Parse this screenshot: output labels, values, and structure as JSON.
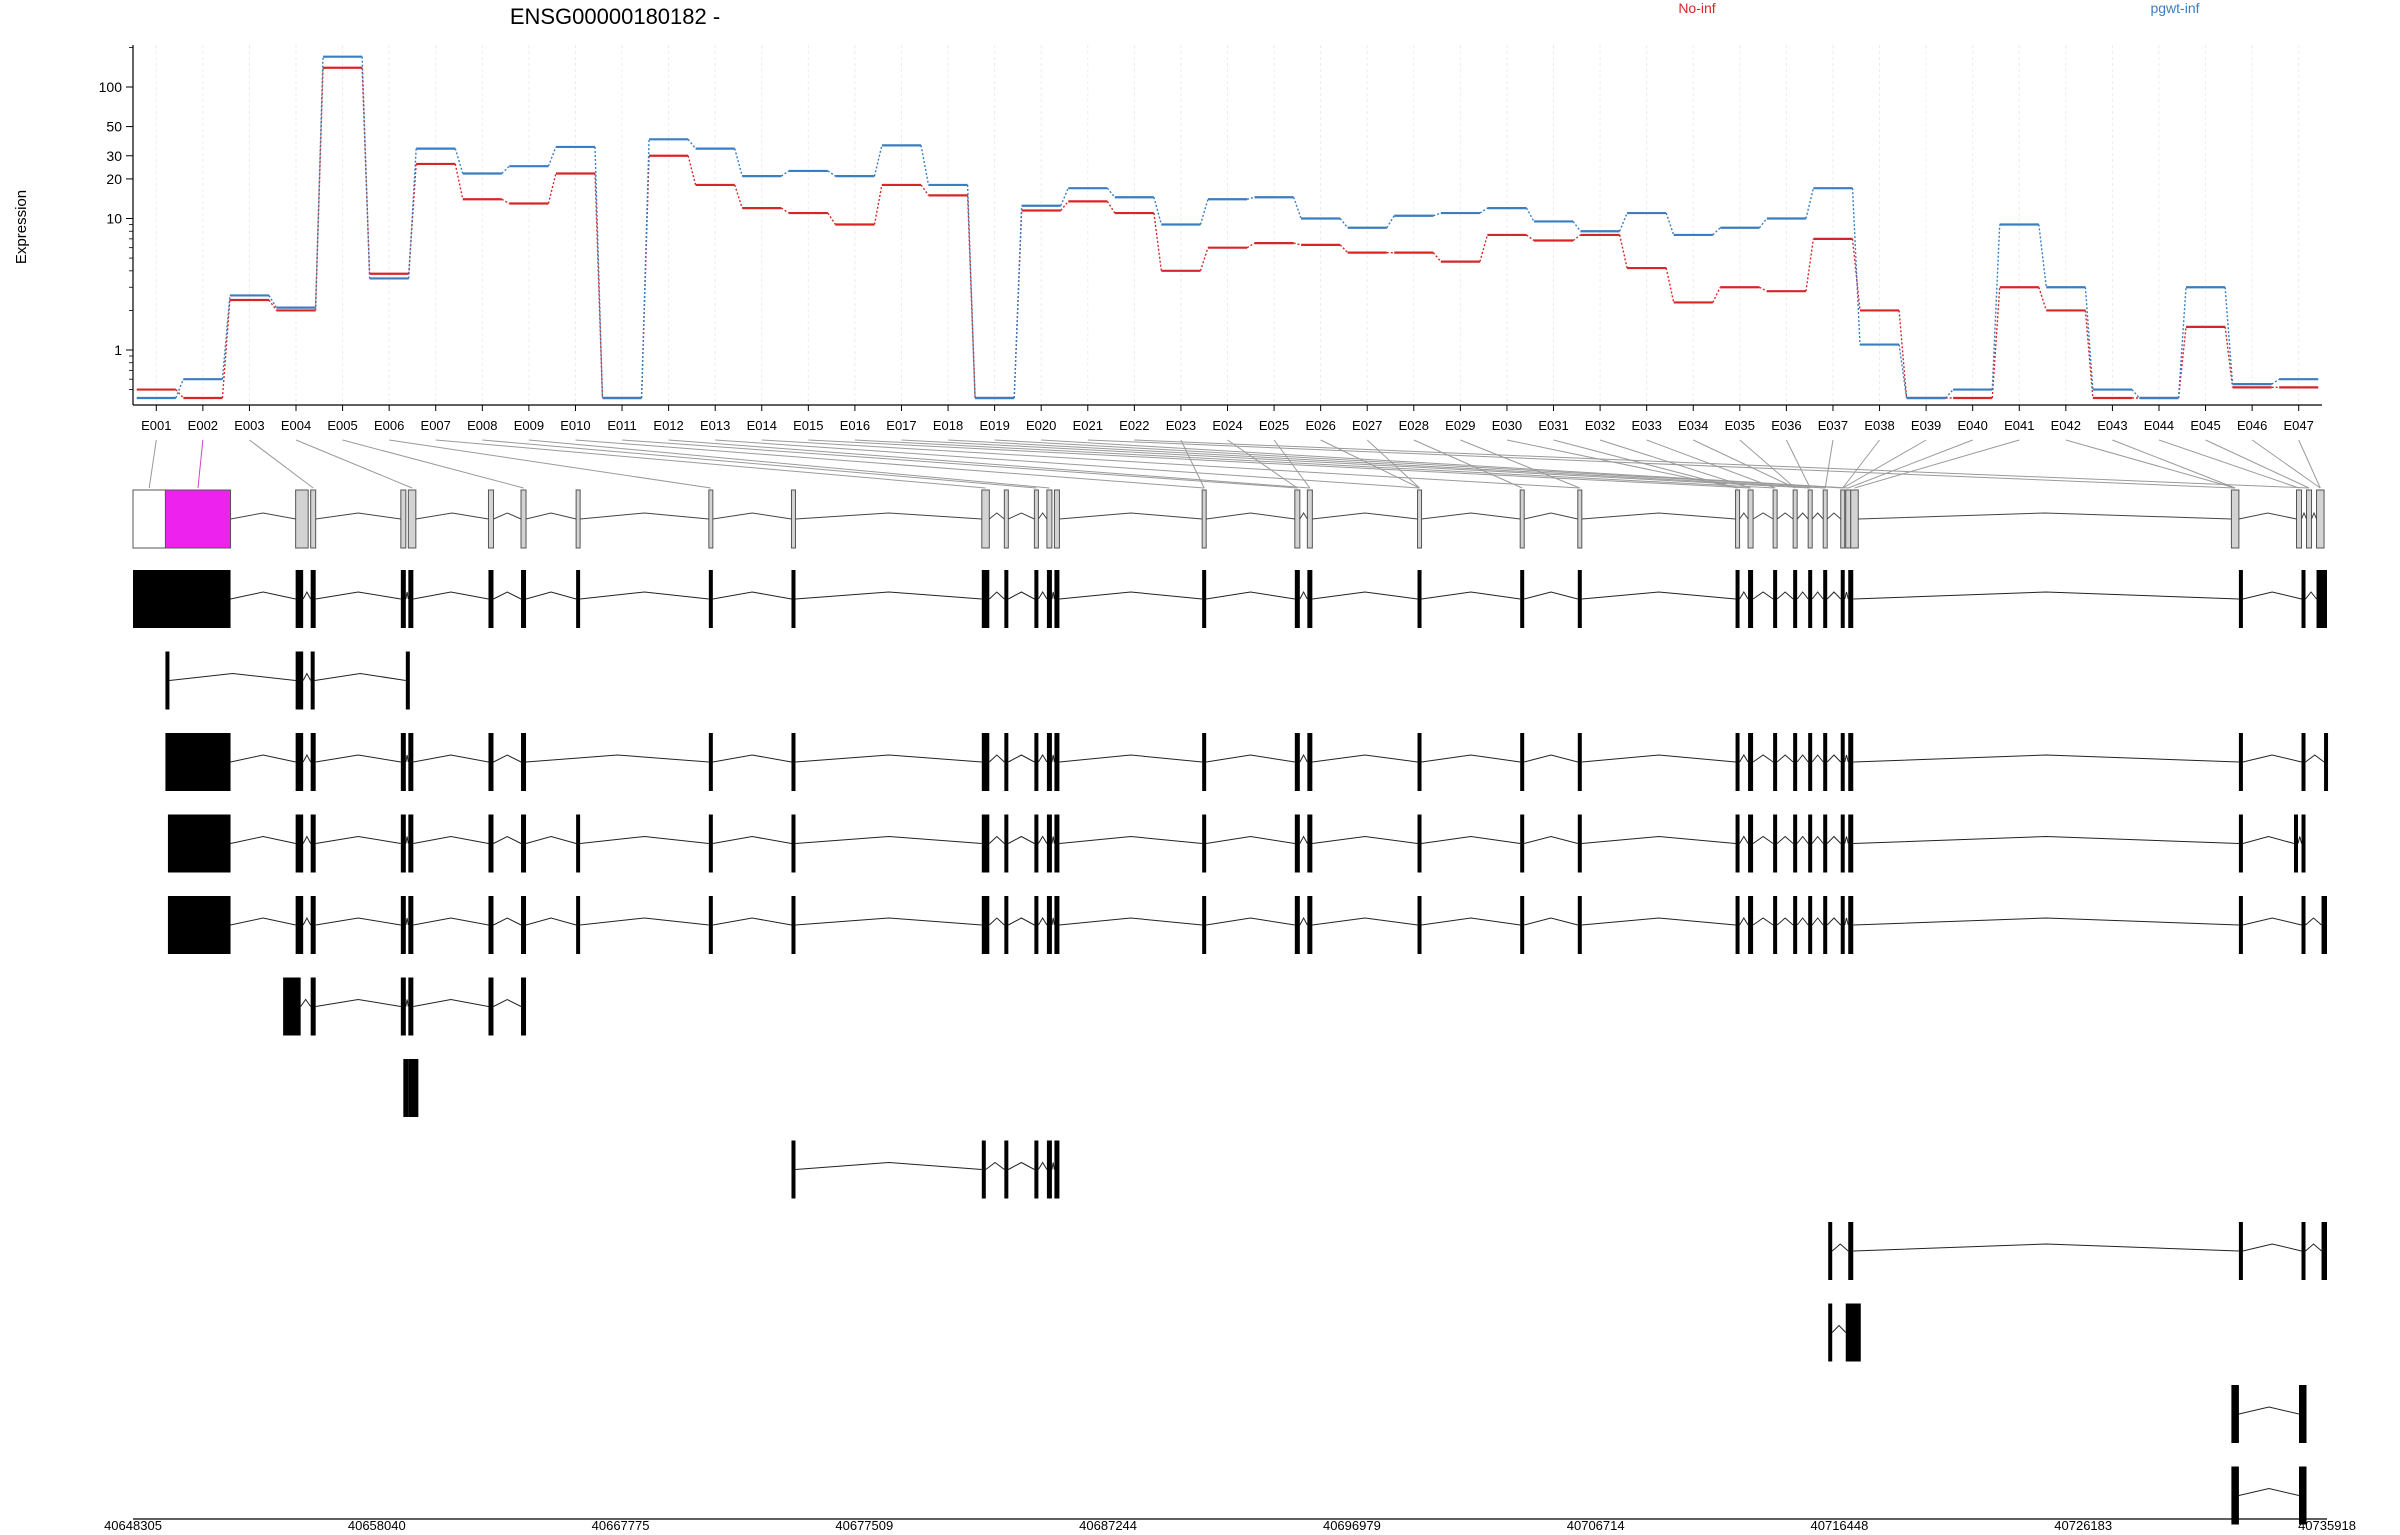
{
  "chart_data": {
    "type": "line",
    "title": "ENSG00000180182 -",
    "ylabel": "Expression",
    "yscale": "log",
    "ylim": [
      0.4,
      200
    ],
    "yticks": [
      1,
      10,
      20,
      30,
      50,
      100
    ],
    "legend_placement": "top",
    "series": [
      {
        "name": "No-inf",
        "color": "#d62728",
        "values": [
          0.5,
          0.4,
          2.4,
          2.0,
          140,
          3.8,
          26,
          14,
          13,
          22,
          0.4,
          30,
          18,
          12,
          11,
          9,
          18,
          15,
          0.4,
          11.5,
          13.5,
          11,
          4,
          6,
          6.5,
          6.3,
          5.5,
          5.5,
          4.7,
          7.5,
          6.8,
          7.5,
          4.2,
          2.3,
          3,
          2.8,
          7,
          2,
          0.4,
          0.4,
          3,
          2,
          0.4,
          0.4,
          1.5,
          0.52,
          0.52
        ]
      },
      {
        "name": "pgwt-inf",
        "color": "#3a7dc0",
        "values": [
          0.4,
          0.6,
          2.6,
          2.1,
          170,
          3.5,
          34,
          22,
          25,
          35,
          0.4,
          40,
          34,
          21,
          23,
          21,
          36,
          18,
          0.4,
          12.5,
          17,
          14.5,
          9,
          14,
          14.5,
          10,
          8.5,
          10.5,
          11,
          12,
          9.5,
          8,
          11,
          7.5,
          8.5,
          10,
          17,
          1.1,
          0.4,
          0.5,
          9,
          3,
          0.5,
          0.4,
          3,
          0.55,
          0.6
        ]
      }
    ],
    "exons": [
      "E001",
      "E002",
      "E003",
      "E004",
      "E005",
      "E006",
      "E007",
      "E008",
      "E009",
      "E010",
      "E011",
      "E012",
      "E013",
      "E014",
      "E015",
      "E016",
      "E017",
      "E018",
      "E019",
      "E020",
      "E021",
      "E022",
      "E023",
      "E024",
      "E025",
      "E026",
      "E027",
      "E028",
      "E029",
      "E030",
      "E031",
      "E032",
      "E033",
      "E034",
      "E035",
      "E036",
      "E037",
      "E038",
      "E039",
      "E040",
      "E041",
      "E042",
      "E043",
      "E044",
      "E045",
      "E046",
      "E047"
    ],
    "highlighted_exon": "E002",
    "genomic_axis": {
      "min": 40648305,
      "max": 40735918,
      "ticks": [
        40648305,
        40658040,
        40667775,
        40677509,
        40687244,
        40696979,
        40706714,
        40716448,
        40726183,
        40735918
      ],
      "tick_labels": [
        "40648305",
        "40658040",
        "40667775",
        "40677509",
        "40687244",
        "40696979",
        "40706714",
        "40716448",
        "40726183",
        "40735918"
      ]
    },
    "exon_model": [
      [
        40648305,
        40649600
      ],
      [
        40649600,
        40652200
      ],
      [
        40654800,
        40655300
      ],
      [
        40655400,
        40655600
      ],
      [
        40659000,
        40659200
      ],
      [
        40659300,
        40659600
      ],
      [
        40662500,
        40662700
      ],
      [
        40663800,
        40664000
      ],
      [
        40666000,
        40666100
      ],
      [
        40671300,
        40671400
      ],
      [
        40674600,
        40674700
      ],
      [
        40682200,
        40682500
      ],
      [
        40683100,
        40683200
      ],
      [
        40684300,
        40684400
      ],
      [
        40684800,
        40685000
      ],
      [
        40685100,
        40685300
      ],
      [
        40691000,
        40691100
      ],
      [
        40694700,
        40694900
      ],
      [
        40695200,
        40695400
      ],
      [
        40699600,
        40699700
      ],
      [
        40703700,
        40703800
      ],
      [
        40706000,
        40706100
      ],
      [
        40712300,
        40712400
      ],
      [
        40712800,
        40713000
      ],
      [
        40713800,
        40713900
      ],
      [
        40714600,
        40714700
      ],
      [
        40715200,
        40715300
      ],
      [
        40715800,
        40715900
      ],
      [
        40716500,
        40716600
      ],
      [
        40716700,
        40716900
      ],
      [
        40716900,
        40717200
      ],
      [
        40732100,
        40732400
      ],
      [
        40734700,
        40734900
      ],
      [
        40735100,
        40735300
      ],
      [
        40735500,
        40735800
      ]
    ],
    "model_to_exon_map": [
      0,
      1,
      1,
      2,
      2,
      3,
      3,
      4,
      4,
      5,
      5,
      6,
      6,
      7,
      8,
      8,
      9,
      10,
      11,
      12,
      12,
      13,
      13,
      14,
      15,
      15,
      16,
      17,
      18,
      19,
      19,
      20,
      20,
      21,
      21,
      22,
      23,
      23,
      24,
      24,
      25,
      26,
      27,
      28,
      29,
      29,
      30,
      30,
      31,
      31,
      31,
      31,
      32,
      33,
      34,
      34,
      34
    ],
    "transcripts": [
      {
        "exons": [
          [
            40648305,
            40652200
          ],
          [
            40654800,
            40655100
          ],
          [
            40655400,
            40655600
          ],
          [
            40659000,
            40659200
          ],
          [
            40659300,
            40659500
          ],
          [
            40662500,
            40662700
          ],
          [
            40663800,
            40664000
          ],
          [
            40666000,
            40666100
          ],
          [
            40671300,
            40671400
          ],
          [
            40674600,
            40674700
          ],
          [
            40682200,
            40682500
          ],
          [
            40683100,
            40683200
          ],
          [
            40684300,
            40684400
          ],
          [
            40684800,
            40685000
          ],
          [
            40685100,
            40685300
          ],
          [
            40691000,
            40691100
          ],
          [
            40694700,
            40694900
          ],
          [
            40695200,
            40695400
          ],
          [
            40699600,
            40699700
          ],
          [
            40703700,
            40703800
          ],
          [
            40706000,
            40706100
          ],
          [
            40712300,
            40712400
          ],
          [
            40712800,
            40713000
          ],
          [
            40713800,
            40713900
          ],
          [
            40714600,
            40714700
          ],
          [
            40715200,
            40715300
          ],
          [
            40715800,
            40715900
          ],
          [
            40716500,
            40716600
          ],
          [
            40716800,
            40717000
          ],
          [
            40732400,
            40732500
          ],
          [
            40734900,
            40735000
          ],
          [
            40735500,
            40735918
          ]
        ]
      },
      {
        "exons": [
          [
            40649600,
            40649700
          ],
          [
            40654800,
            40655100
          ],
          [
            40655400,
            40655500
          ],
          [
            40659200,
            40659300
          ]
        ]
      },
      {
        "exons": [
          [
            40649600,
            40652200
          ],
          [
            40654800,
            40655100
          ],
          [
            40655400,
            40655600
          ],
          [
            40659000,
            40659200
          ],
          [
            40659300,
            40659500
          ],
          [
            40662500,
            40662700
          ],
          [
            40663800,
            40664000
          ],
          [
            40671300,
            40671400
          ],
          [
            40674600,
            40674700
          ],
          [
            40682200,
            40682500
          ],
          [
            40683100,
            40683200
          ],
          [
            40684300,
            40684400
          ],
          [
            40684800,
            40685000
          ],
          [
            40685100,
            40685300
          ],
          [
            40691000,
            40691100
          ],
          [
            40694700,
            40694900
          ],
          [
            40695200,
            40695400
          ],
          [
            40699600,
            40699700
          ],
          [
            40703700,
            40703800
          ],
          [
            40706000,
            40706100
          ],
          [
            40712300,
            40712400
          ],
          [
            40712800,
            40713000
          ],
          [
            40713800,
            40713900
          ],
          [
            40714600,
            40714700
          ],
          [
            40715200,
            40715300
          ],
          [
            40715800,
            40715900
          ],
          [
            40716500,
            40716600
          ],
          [
            40716800,
            40717000
          ],
          [
            40732400,
            40732500
          ],
          [
            40734900,
            40735000
          ],
          [
            40735800,
            40735918
          ]
        ]
      },
      {
        "exons": [
          [
            40649700,
            40652200
          ],
          [
            40654800,
            40655100
          ],
          [
            40655400,
            40655600
          ],
          [
            40659000,
            40659200
          ],
          [
            40659300,
            40659500
          ],
          [
            40662500,
            40662700
          ],
          [
            40663800,
            40664000
          ],
          [
            40666000,
            40666100
          ],
          [
            40671300,
            40671400
          ],
          [
            40674600,
            40674700
          ],
          [
            40682200,
            40682500
          ],
          [
            40683100,
            40683200
          ],
          [
            40684300,
            40684400
          ],
          [
            40684800,
            40685000
          ],
          [
            40685100,
            40685300
          ],
          [
            40691000,
            40691100
          ],
          [
            40694700,
            40694900
          ],
          [
            40695200,
            40695400
          ],
          [
            40699600,
            40699700
          ],
          [
            40703700,
            40703800
          ],
          [
            40706000,
            40706100
          ],
          [
            40712300,
            40712400
          ],
          [
            40712800,
            40713000
          ],
          [
            40713800,
            40713900
          ],
          [
            40714600,
            40714700
          ],
          [
            40715200,
            40715300
          ],
          [
            40715800,
            40715900
          ],
          [
            40716500,
            40716600
          ],
          [
            40716800,
            40717000
          ],
          [
            40732400,
            40732500
          ],
          [
            40734900,
            40735000
          ],
          [
            40734600,
            40734700
          ]
        ]
      },
      {
        "exons": [
          [
            40649700,
            40652200
          ],
          [
            40654800,
            40655100
          ],
          [
            40655400,
            40655600
          ],
          [
            40659000,
            40659200
          ],
          [
            40659300,
            40659500
          ],
          [
            40662500,
            40662700
          ],
          [
            40663800,
            40664000
          ],
          [
            40666000,
            40666100
          ],
          [
            40671300,
            40671400
          ],
          [
            40674600,
            40674700
          ],
          [
            40682200,
            40682500
          ],
          [
            40683100,
            40683200
          ],
          [
            40684300,
            40684400
          ],
          [
            40684800,
            40685000
          ],
          [
            40685100,
            40685300
          ],
          [
            40691000,
            40691100
          ],
          [
            40694700,
            40694900
          ],
          [
            40695200,
            40695400
          ],
          [
            40699600,
            40699700
          ],
          [
            40703700,
            40703800
          ],
          [
            40706000,
            40706100
          ],
          [
            40712300,
            40712400
          ],
          [
            40712800,
            40713000
          ],
          [
            40713800,
            40713900
          ],
          [
            40714600,
            40714700
          ],
          [
            40715200,
            40715300
          ],
          [
            40715800,
            40715900
          ],
          [
            40716500,
            40716600
          ],
          [
            40716800,
            40717000
          ],
          [
            40732400,
            40732500
          ],
          [
            40734900,
            40735000
          ],
          [
            40735700,
            40735918
          ]
        ]
      },
      {
        "exons": [
          [
            40654300,
            40655000
          ],
          [
            40655400,
            40655600
          ],
          [
            40659000,
            40659200
          ],
          [
            40659300,
            40659500
          ],
          [
            40662500,
            40662700
          ],
          [
            40663800,
            40664000
          ]
        ]
      },
      {
        "exons": [
          [
            40659100,
            40659300
          ],
          [
            40659300,
            40659700
          ]
        ]
      },
      {
        "exons": [
          [
            40674600,
            40674700
          ],
          [
            40682200,
            40682300
          ],
          [
            40683100,
            40683200
          ],
          [
            40684300,
            40684400
          ],
          [
            40684800,
            40685000
          ],
          [
            40685100,
            40685300
          ]
        ]
      },
      {
        "exons": [
          [
            40716000,
            40716100
          ],
          [
            40716800,
            40717000
          ],
          [
            40732400,
            40732500
          ],
          [
            40734900,
            40735000
          ],
          [
            40735700,
            40735918
          ]
        ]
      },
      {
        "exons": [
          [
            40716000,
            40716100
          ],
          [
            40716700,
            40717300
          ]
        ]
      },
      {
        "exons": [
          [
            40732100,
            40732400
          ],
          [
            40734800,
            40735100
          ]
        ]
      },
      {
        "exons": [
          [
            40732100,
            40732400
          ],
          [
            40734800,
            40735100
          ]
        ]
      }
    ]
  }
}
